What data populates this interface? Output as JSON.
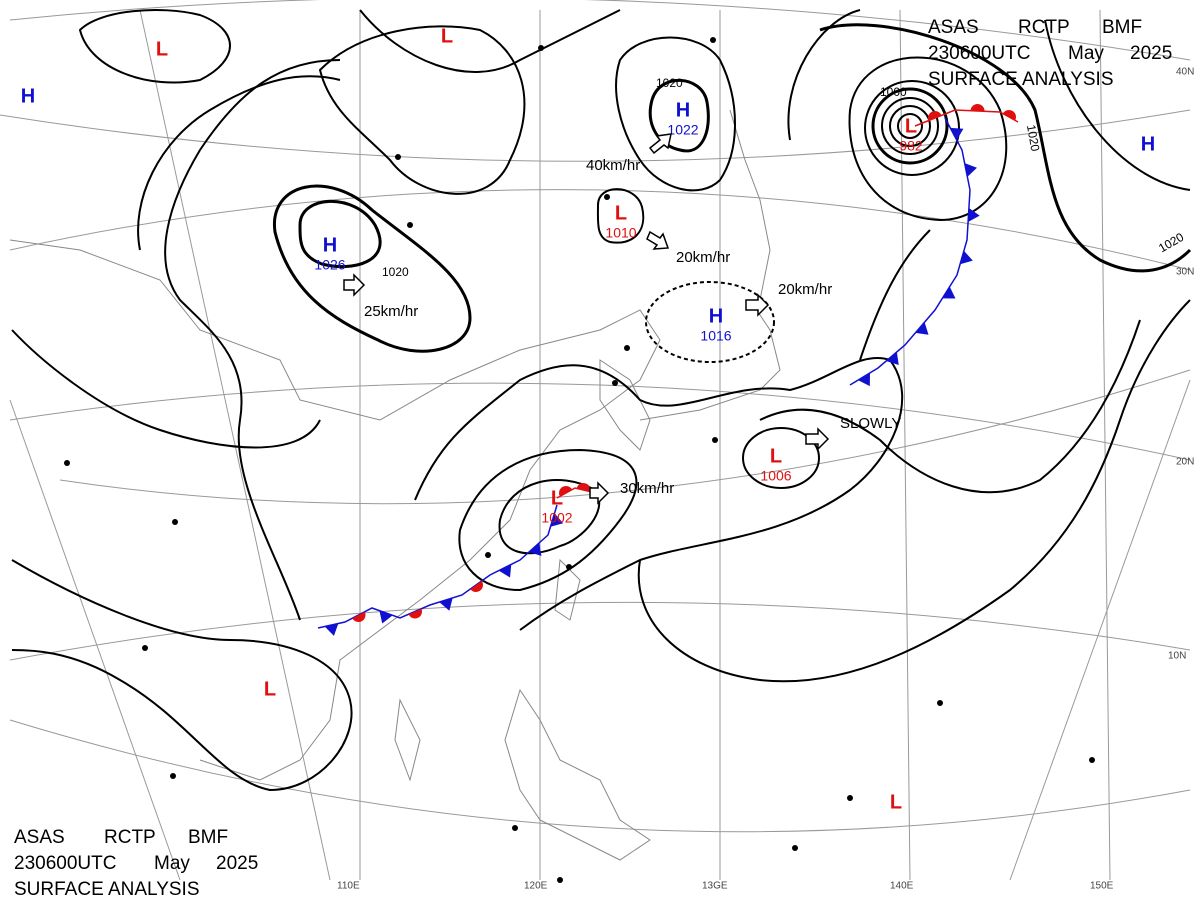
{
  "header": {
    "agency": "ASAS",
    "station": "RCTP",
    "office": "BMF",
    "time": "230600UTC",
    "month": "May",
    "year": "2025",
    "product": "SURFACE ANALYSIS"
  },
  "systems": [
    {
      "type": "H"
    },
    {
      "type": "L"
    },
    {
      "type": "L"
    },
    {
      "type": "H",
      "pressure": "1026"
    },
    {
      "type": "H",
      "pressure": "1022"
    },
    {
      "type": "L",
      "pressure": "1010"
    },
    {
      "type": "H",
      "pressure": "1016"
    },
    {
      "type": "L",
      "pressure": "982"
    },
    {
      "type": "H"
    },
    {
      "type": "L",
      "pressure": "1006"
    },
    {
      "type": "L",
      "pressure": "1002"
    },
    {
      "type": "L"
    },
    {
      "type": "L"
    }
  ],
  "motions": [
    "25km/hr",
    "40km/hr",
    "20km/hr",
    "20km/hr",
    "SLOWLY",
    "30km/hr"
  ],
  "isobar_labels": [
    "1020",
    "1020",
    "1000",
    "1020",
    "1020"
  ],
  "latitudes": [
    "40N",
    "30N",
    "20N",
    "10N"
  ],
  "longitudes": [
    "110E",
    "120E",
    "13GE",
    "140E",
    "150E"
  ]
}
